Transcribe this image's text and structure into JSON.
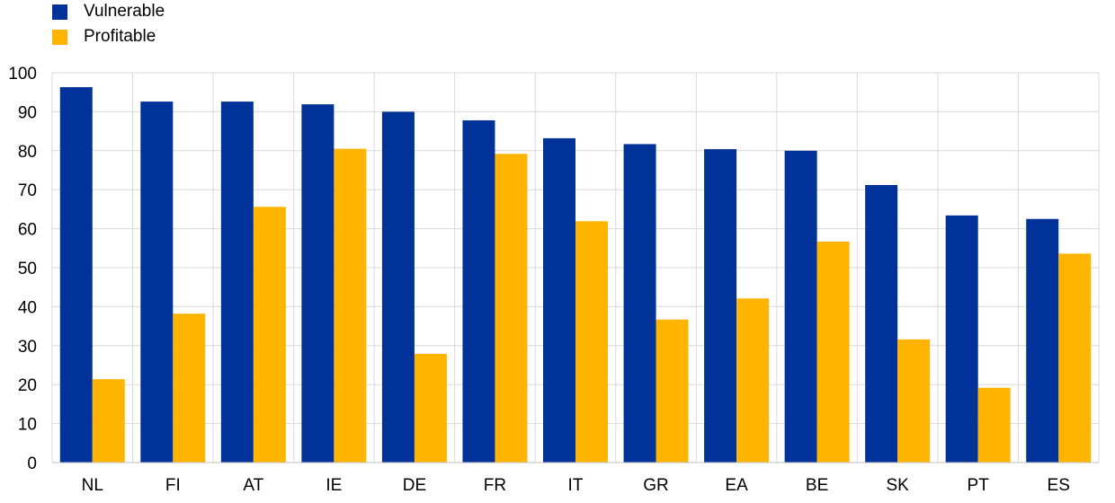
{
  "colors": {
    "vulnerable": "#003299",
    "profitable": "#FFB400",
    "grid": "#D9D9D9",
    "axis": "#BFBFBF"
  },
  "chart_data": {
    "type": "bar",
    "categories": [
      "NL",
      "FI",
      "AT",
      "IE",
      "DE",
      "FR",
      "IT",
      "GR",
      "EA",
      "BE",
      "SK",
      "PT",
      "ES"
    ],
    "series": [
      {
        "name": "Vulnerable",
        "color": "#003299",
        "values": [
          96.3,
          92.6,
          92.6,
          91.9,
          90.0,
          87.8,
          83.2,
          81.7,
          80.4,
          80.0,
          71.2,
          63.4,
          62.5
        ]
      },
      {
        "name": "Profitable",
        "color": "#FFB400",
        "values": [
          21.4,
          38.2,
          65.6,
          80.5,
          27.9,
          79.2,
          61.9,
          36.7,
          42.1,
          56.7,
          31.6,
          19.2,
          53.6
        ]
      }
    ],
    "ylim": [
      0,
      100
    ],
    "yticks": [
      "0",
      "10",
      "20",
      "30",
      "40",
      "50",
      "60",
      "70",
      "80",
      "90",
      "100"
    ],
    "grid": true,
    "legend": "top-left"
  }
}
